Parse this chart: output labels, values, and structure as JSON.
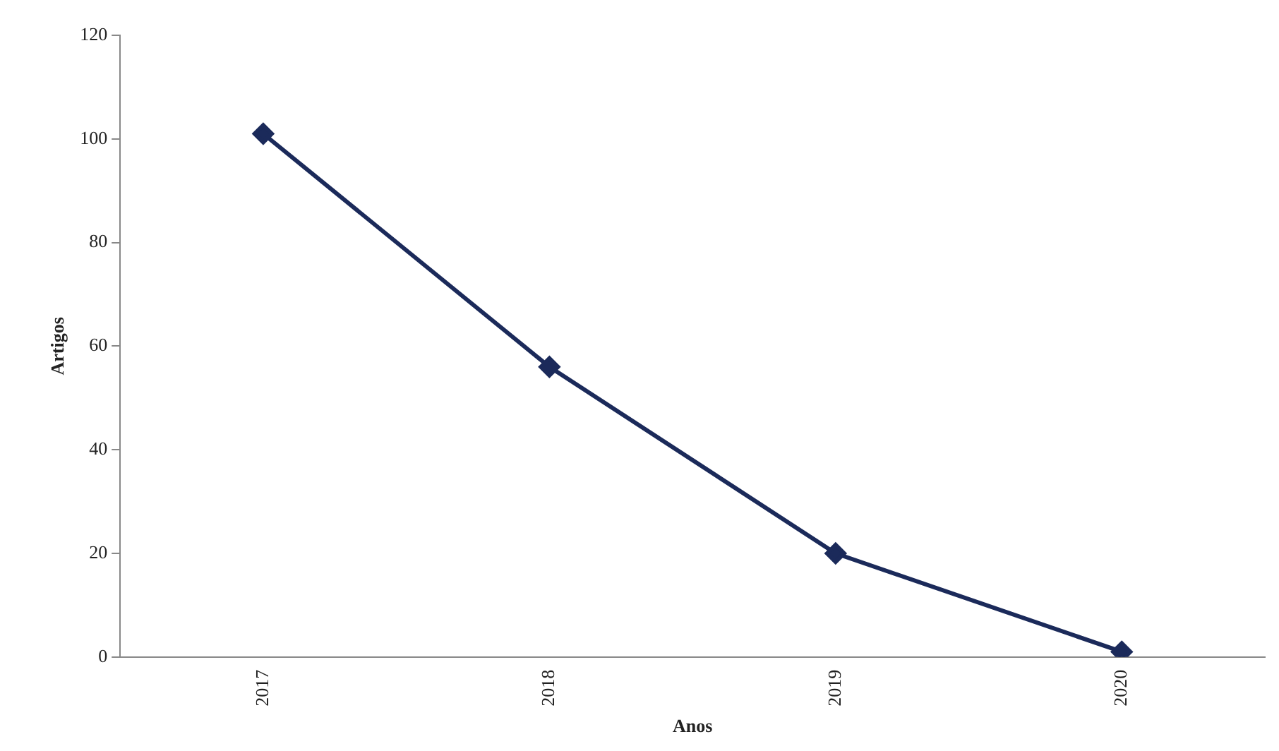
{
  "chart_data": {
    "type": "line",
    "xlabel": "Anos",
    "ylabel": "Artigos",
    "categories": [
      "2017",
      "2018",
      "2019",
      "2020"
    ],
    "series": [
      {
        "color": "#1b2a5a",
        "values": [
          101,
          56,
          20,
          1
        ]
      }
    ],
    "ylim": [
      0,
      120
    ],
    "yticks": [
      0,
      20,
      40,
      60,
      80,
      100,
      120
    ],
    "grid": false,
    "legend": false,
    "marker": "diamond",
    "line_style": "solid"
  }
}
